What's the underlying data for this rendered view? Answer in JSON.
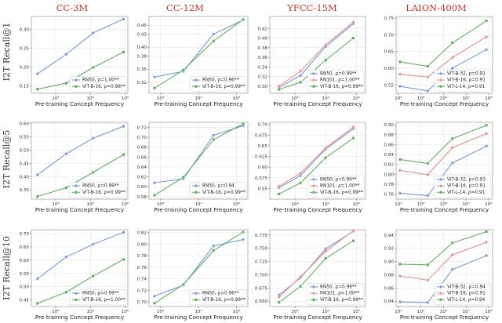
{
  "figure": {
    "column_titles": [
      "CC-3M",
      "CC-12M",
      "YFCC-15M",
      "LAION-400M"
    ],
    "row_labels": [
      "I2T Recall@1",
      "I2T Recall@5",
      "I2T Recall@10"
    ],
    "x_axis_label": "Pre-training Concept Frequency"
  },
  "colors": {
    "RN50": "#7b97d6",
    "RN101": "#e58f8f",
    "ViT-B-16_green": "#5fae5f",
    "ViT-B-32": "#7b97d6",
    "ViT-B-16_laion": "#e58f8f",
    "ViT-L-14": "#5fae5f",
    "title": "#c0392b"
  },
  "chart_data": [
    {
      "type": "line",
      "row": 0,
      "col": 0,
      "xscale": "log",
      "xlim": [
        200,
        120000
      ],
      "ylim": [
        0.13,
        0.335
      ],
      "xticks": [
        1000,
        10000,
        100000
      ],
      "xtick_labels": [
        "10³",
        "10⁴",
        "10⁵"
      ],
      "yticks": [
        0.15,
        0.2,
        0.25,
        0.3
      ],
      "ytick_labels": [
        "0.15",
        "0.20",
        "0.25",
        "0.30"
      ],
      "legend": "lower-right",
      "xlabel": "Pre-training Concept Frequency",
      "ylabel": "I2T Recall@1",
      "series": [
        {
          "name": "RN50, ρ=1.00**",
          "color_key": "RN50",
          "marker": "circle",
          "x": [
            300,
            2000,
            12000,
            90000
          ],
          "y": [
            0.182,
            0.234,
            0.291,
            0.328
          ]
        },
        {
          "name": "ViT-B-16, ρ=0.98**",
          "color_key": "ViT-B-16_green",
          "marker": "square",
          "x": [
            300,
            2000,
            12000,
            90000
          ],
          "y": [
            0.141,
            0.157,
            0.199,
            0.24
          ]
        }
      ]
    },
    {
      "type": "line",
      "row": 0,
      "col": 1,
      "xscale": "log",
      "xlim": [
        500,
        200000
      ],
      "ylim": [
        0.295,
        0.47
      ],
      "xticks": [
        1000,
        10000,
        100000
      ],
      "xtick_labels": [
        "10³",
        "10⁴",
        "10⁵"
      ],
      "yticks": [
        0.32,
        0.35,
        0.38,
        0.4,
        0.43,
        0.45
      ],
      "ytick_labels": [
        "0.32",
        "0.35",
        "0.38",
        "0.40",
        "0.43",
        "0.45"
      ],
      "legend": "lower-right",
      "xlabel": "Pre-training Concept Frequency",
      "ylabel": "",
      "series": [
        {
          "name": "RN50, ρ=0.96**",
          "color_key": "RN50",
          "marker": "circle",
          "x": [
            700,
            4000,
            25000,
            150000
          ],
          "y": [
            0.332,
            0.345,
            0.43,
            0.462
          ]
        },
        {
          "name": "ViT-B-16, ρ=0.99**",
          "color_key": "ViT-B-16_green",
          "marker": "square",
          "x": [
            700,
            4000,
            25000,
            150000
          ],
          "y": [
            0.307,
            0.348,
            0.414,
            0.463
          ]
        }
      ]
    },
    {
      "type": "line",
      "row": 0,
      "col": 2,
      "xscale": "log",
      "xlim": [
        150,
        200000
      ],
      "ylim": [
        0.285,
        0.445
      ],
      "xticks": [
        1000,
        10000,
        100000
      ],
      "xtick_labels": [
        "10³",
        "10⁴",
        "10⁵"
      ],
      "yticks": [
        0.3,
        0.32,
        0.34,
        0.36,
        0.38,
        0.4,
        0.42
      ],
      "ytick_labels": [
        "0.30",
        "0.32",
        "0.34",
        "0.36",
        "0.38",
        "0.40",
        "0.42"
      ],
      "legend": "lower-right",
      "xlabel": "Pre-training Concept Frequency",
      "ylabel": "",
      "series": [
        {
          "name": "RN50, ρ=0.99**",
          "color_key": "RN50",
          "marker": "circle",
          "x": [
            300,
            1500,
            10000,
            80000
          ],
          "y": [
            0.297,
            0.322,
            0.382,
            0.43
          ]
        },
        {
          "name": "RN101, ρ=1.00**",
          "color_key": "RN101",
          "marker": "diamond",
          "x": [
            300,
            1500,
            10000,
            80000
          ],
          "y": [
            0.3,
            0.331,
            0.386,
            0.433
          ]
        },
        {
          "name": "ViT-B-16, ρ=0.99**",
          "color_key": "ViT-B-16_green",
          "marker": "square",
          "x": [
            300,
            1500,
            10000,
            80000
          ],
          "y": [
            0.293,
            0.308,
            0.354,
            0.4
          ]
        }
      ]
    },
    {
      "type": "line",
      "row": 0,
      "col": 3,
      "xscale": "log",
      "xlim": [
        8000,
        150000000
      ],
      "ylim": [
        0.525,
        0.755
      ],
      "xticks": [
        10000,
        100000,
        1000000,
        10000000,
        100000000
      ],
      "xtick_labels": [
        "10⁴",
        "10⁵",
        "10⁶",
        "10⁷",
        "10⁸"
      ],
      "yticks": [
        0.55,
        0.6,
        0.65,
        0.7,
        0.75
      ],
      "ytick_labels": [
        "0.55",
        "0.60",
        "0.65",
        "0.70",
        "0.75"
      ],
      "legend": "lower-right",
      "xlabel": "Pre-training Concept Frequency",
      "ylabel": "",
      "series": [
        {
          "name": "ViT-B-32, ρ=0.91",
          "color_key": "ViT-B-32",
          "marker": "circle",
          "x": [
            12000,
            200000,
            2500000,
            80000000
          ],
          "y": [
            0.546,
            0.532,
            0.6,
            0.656
          ]
        },
        {
          "name": "ViT-B-16, ρ=0.91",
          "color_key": "ViT-B-16_laion",
          "marker": "diamond",
          "x": [
            12000,
            200000,
            2500000,
            80000000
          ],
          "y": [
            0.582,
            0.574,
            0.632,
            0.694
          ]
        },
        {
          "name": "ViT-L-14, ρ=0.91",
          "color_key": "ViT-L-14",
          "marker": "square",
          "x": [
            12000,
            200000,
            2500000,
            80000000
          ],
          "y": [
            0.619,
            0.606,
            0.676,
            0.742
          ]
        }
      ]
    },
    {
      "type": "line",
      "row": 1,
      "col": 0,
      "xscale": "log",
      "xlim": [
        200,
        120000
      ],
      "ylim": [
        0.315,
        0.605
      ],
      "xticks": [
        1000,
        10000,
        100000
      ],
      "xtick_labels": [
        "10³",
        "10⁴",
        "10⁵"
      ],
      "yticks": [
        0.35,
        0.4,
        0.45,
        0.5,
        0.55,
        0.6
      ],
      "ytick_labels": [
        "0.35",
        "0.40",
        "0.45",
        "0.50",
        "0.55",
        "0.60"
      ],
      "legend": "lower-right",
      "xlabel": "Pre-training Concept Frequency",
      "ylabel": "I2T Recall@5",
      "series": [
        {
          "name": "RN50, ρ=0.99**",
          "color_key": "RN50",
          "marker": "circle",
          "x": [
            300,
            2000,
            12000,
            90000
          ],
          "y": [
            0.407,
            0.486,
            0.545,
            0.59
          ]
        },
        {
          "name": "ViT-B-16, ρ=0.99**",
          "color_key": "ViT-B-16_green",
          "marker": "square",
          "x": [
            300,
            2000,
            12000,
            90000
          ],
          "y": [
            0.325,
            0.358,
            0.416,
            0.483
          ]
        }
      ]
    },
    {
      "type": "line",
      "row": 1,
      "col": 1,
      "xscale": "log",
      "xlim": [
        500,
        200000
      ],
      "ylim": [
        0.575,
        0.73
      ],
      "xticks": [
        1000,
        10000,
        100000
      ],
      "xtick_labels": [
        "10³",
        "10⁴",
        "10⁵"
      ],
      "yticks": [
        0.58,
        0.6,
        0.62,
        0.64,
        0.66,
        0.68,
        0.7,
        0.72
      ],
      "ytick_labels": [
        "0.58",
        "0.60",
        "0.62",
        "0.64",
        "0.66",
        "0.68",
        "0.70",
        "0.72"
      ],
      "legend": "lower-right",
      "xlabel": "Pre-training Concept Frequency",
      "ylabel": "",
      "series": [
        {
          "name": "RN50, ρ=0.94",
          "color_key": "RN50",
          "marker": "circle",
          "x": [
            700,
            4000,
            25000,
            150000
          ],
          "y": [
            0.608,
            0.616,
            0.704,
            0.723
          ]
        },
        {
          "name": "ViT-B-16, ρ=0.99**",
          "color_key": "ViT-B-16_green",
          "marker": "square",
          "x": [
            700,
            4000,
            25000,
            150000
          ],
          "y": [
            0.583,
            0.619,
            0.695,
            0.727
          ]
        }
      ]
    },
    {
      "type": "line",
      "row": 1,
      "col": 2,
      "xscale": "log",
      "xlim": [
        150,
        200000
      ],
      "ylim": [
        0.525,
        0.705
      ],
      "xticks": [
        1000,
        10000,
        100000
      ],
      "xtick_labels": [
        "10³",
        "10⁴",
        "10⁵"
      ],
      "yticks": [
        0.55,
        0.575,
        0.6,
        0.625,
        0.65,
        0.675,
        0.7
      ],
      "ytick_labels": [
        "0.55",
        "0.575",
        "0.60",
        "0.625",
        "0.65",
        "0.675",
        "0.70"
      ],
      "legend": "lower-right",
      "xlabel": "Pre-training Concept Frequency",
      "ylabel": "",
      "series": [
        {
          "name": "RN50, ρ=0.99**",
          "color_key": "RN50",
          "marker": "circle",
          "x": [
            300,
            1500,
            10000,
            80000
          ],
          "y": [
            0.552,
            0.58,
            0.642,
            0.69
          ]
        },
        {
          "name": "RN101, ρ=1.00**",
          "color_key": "RN101",
          "marker": "diamond",
          "x": [
            300,
            1500,
            10000,
            80000
          ],
          "y": [
            0.555,
            0.586,
            0.645,
            0.694
          ]
        },
        {
          "name": "ViT-B-16, ρ=0.99**",
          "color_key": "ViT-B-16_green",
          "marker": "square",
          "x": [
            300,
            1500,
            10000,
            80000
          ],
          "y": [
            0.537,
            0.563,
            0.622,
            0.668
          ]
        }
      ]
    },
    {
      "type": "line",
      "row": 1,
      "col": 3,
      "xscale": "log",
      "xlim": [
        8000,
        150000000
      ],
      "ylim": [
        0.75,
        0.905
      ],
      "xticks": [
        10000,
        100000,
        1000000,
        10000000,
        100000000
      ],
      "xtick_labels": [
        "10⁴",
        "10⁵",
        "10⁶",
        "10⁷",
        "10⁸"
      ],
      "yticks": [
        0.76,
        0.78,
        0.8,
        0.82,
        0.84,
        0.86,
        0.88,
        0.9
      ],
      "ytick_labels": [
        "0.76",
        "0.78",
        "0.80",
        "0.82",
        "0.84",
        "0.86",
        "0.88",
        "0.90"
      ],
      "legend": "lower-right",
      "xlabel": "Pre-training Concept Frequency",
      "ylabel": "",
      "series": [
        {
          "name": "ViT-B-32, ρ=0.93",
          "color_key": "ViT-B-32",
          "marker": "circle",
          "x": [
            12000,
            200000,
            2500000,
            80000000
          ],
          "y": [
            0.762,
            0.757,
            0.823,
            0.857
          ]
        },
        {
          "name": "ViT-B-16, ρ=0.91",
          "color_key": "ViT-B-16_laion",
          "marker": "diamond",
          "x": [
            12000,
            200000,
            2500000,
            80000000
          ],
          "y": [
            0.808,
            0.799,
            0.854,
            0.882
          ]
        },
        {
          "name": "ViT-L-14, ρ=0.91",
          "color_key": "ViT-L-14",
          "marker": "square",
          "x": [
            12000,
            200000,
            2500000,
            80000000
          ],
          "y": [
            0.83,
            0.822,
            0.872,
            0.899
          ]
        }
      ]
    },
    {
      "type": "line",
      "row": 2,
      "col": 0,
      "xscale": "log",
      "xlim": [
        200,
        120000
      ],
      "ylim": [
        0.425,
        0.715
      ],
      "xticks": [
        1000,
        10000,
        100000
      ],
      "xtick_labels": [
        "10³",
        "10⁴",
        "10⁵"
      ],
      "yticks": [
        0.45,
        0.5,
        0.55,
        0.6,
        0.65,
        0.7
      ],
      "ytick_labels": [
        "0.45",
        "0.50",
        "0.55",
        "0.60",
        "0.65",
        "0.70"
      ],
      "legend": "lower-right",
      "xlabel": "Pre-training Concept Frequency",
      "ylabel": "I2T Recall@10",
      "series": [
        {
          "name": "RN50, ρ=0.99**",
          "color_key": "RN50",
          "marker": "circle",
          "x": [
            300,
            2000,
            12000,
            90000
          ],
          "y": [
            0.53,
            0.612,
            0.66,
            0.705
          ]
        },
        {
          "name": "ViT-B-16, ρ=1.00**",
          "color_key": "ViT-B-16_green",
          "marker": "square",
          "x": [
            300,
            2000,
            12000,
            90000
          ],
          "y": [
            0.437,
            0.479,
            0.54,
            0.603
          ]
        }
      ]
    },
    {
      "type": "line",
      "row": 2,
      "col": 1,
      "xscale": "log",
      "xlim": [
        500,
        200000
      ],
      "ylim": [
        0.692,
        0.825
      ],
      "xticks": [
        1000,
        10000,
        100000
      ],
      "xtick_labels": [
        "10³",
        "10⁴",
        "10⁵"
      ],
      "yticks": [
        0.7,
        0.72,
        0.74,
        0.76,
        0.78,
        0.8,
        0.82
      ],
      "ytick_labels": [
        "0.70",
        "0.72",
        "0.74",
        "0.76",
        "0.78",
        "0.80",
        "0.82"
      ],
      "legend": "lower-right",
      "xlabel": "Pre-training Concept Frequency",
      "ylabel": "",
      "series": [
        {
          "name": "RN50, ρ=0.96**",
          "color_key": "RN50",
          "marker": "circle",
          "x": [
            700,
            4000,
            25000,
            150000
          ],
          "y": [
            0.71,
            0.729,
            0.797,
            0.808
          ]
        },
        {
          "name": "ViT-B-16, ρ=0.99**",
          "color_key": "ViT-B-16_green",
          "marker": "square",
          "x": [
            700,
            4000,
            25000,
            150000
          ],
          "y": [
            0.698,
            0.73,
            0.789,
            0.821
          ]
        }
      ]
    },
    {
      "type": "line",
      "row": 2,
      "col": 2,
      "xscale": "log",
      "xlim": [
        150,
        200000
      ],
      "ylim": [
        0.64,
        0.785
      ],
      "xticks": [
        1000,
        10000,
        100000
      ],
      "xtick_labels": [
        "10³",
        "10⁴",
        "10⁵"
      ],
      "yticks": [
        0.65,
        0.675,
        0.7,
        0.725,
        0.75,
        0.775
      ],
      "ytick_labels": [
        "0.650",
        "0.675",
        "0.700",
        "0.725",
        "0.750",
        "0.775"
      ],
      "legend": "lower-right",
      "xlabel": "Pre-training Concept Frequency",
      "ylabel": "",
      "series": [
        {
          "name": "RN50, ρ=0.99**",
          "color_key": "RN50",
          "marker": "circle",
          "x": [
            300,
            1500,
            10000,
            80000
          ],
          "y": [
            0.662,
            0.694,
            0.749,
            0.782
          ]
        },
        {
          "name": "RN101, ρ=1.00**",
          "color_key": "RN101",
          "marker": "diamond",
          "x": [
            300,
            1500,
            10000,
            80000
          ],
          "y": [
            0.658,
            0.696,
            0.744,
            0.783
          ]
        },
        {
          "name": "ViT-B-16, ρ=0.99**",
          "color_key": "ViT-B-16_green",
          "marker": "square",
          "x": [
            300,
            1500,
            10000,
            80000
          ],
          "y": [
            0.648,
            0.678,
            0.731,
            0.764
          ]
        }
      ]
    },
    {
      "type": "line",
      "row": 2,
      "col": 3,
      "xscale": "log",
      "xlim": [
        8000,
        150000000
      ],
      "ylim": [
        0.832,
        0.948
      ],
      "xticks": [
        10000,
        100000,
        1000000,
        10000000,
        100000000
      ],
      "xtick_labels": [
        "10⁴",
        "10⁵",
        "10⁶",
        "10⁷",
        "10⁸"
      ],
      "yticks": [
        0.84,
        0.86,
        0.88,
        0.9,
        0.92,
        0.94
      ],
      "ytick_labels": [
        "0.84",
        "0.86",
        "0.88",
        "0.90",
        "0.92",
        "0.94"
      ],
      "legend": "lower-right",
      "xlabel": "Pre-training Concept Frequency",
      "ylabel": "",
      "series": [
        {
          "name": "ViT-B-32, ρ=0.94",
          "color_key": "ViT-B-32",
          "marker": "circle",
          "x": [
            12000,
            200000,
            2500000,
            80000000
          ],
          "y": [
            0.839,
            0.838,
            0.888,
            0.909
          ]
        },
        {
          "name": "ViT-B-16, ρ=0.91",
          "color_key": "ViT-B-16_laion",
          "marker": "diamond",
          "x": [
            12000,
            200000,
            2500000,
            80000000
          ],
          "y": [
            0.878,
            0.872,
            0.91,
            0.929
          ]
        },
        {
          "name": "ViT-L-14, ρ=0.94",
          "color_key": "ViT-L-14",
          "marker": "square",
          "x": [
            12000,
            200000,
            2500000,
            80000000
          ],
          "y": [
            0.896,
            0.895,
            0.928,
            0.945
          ]
        }
      ]
    }
  ]
}
